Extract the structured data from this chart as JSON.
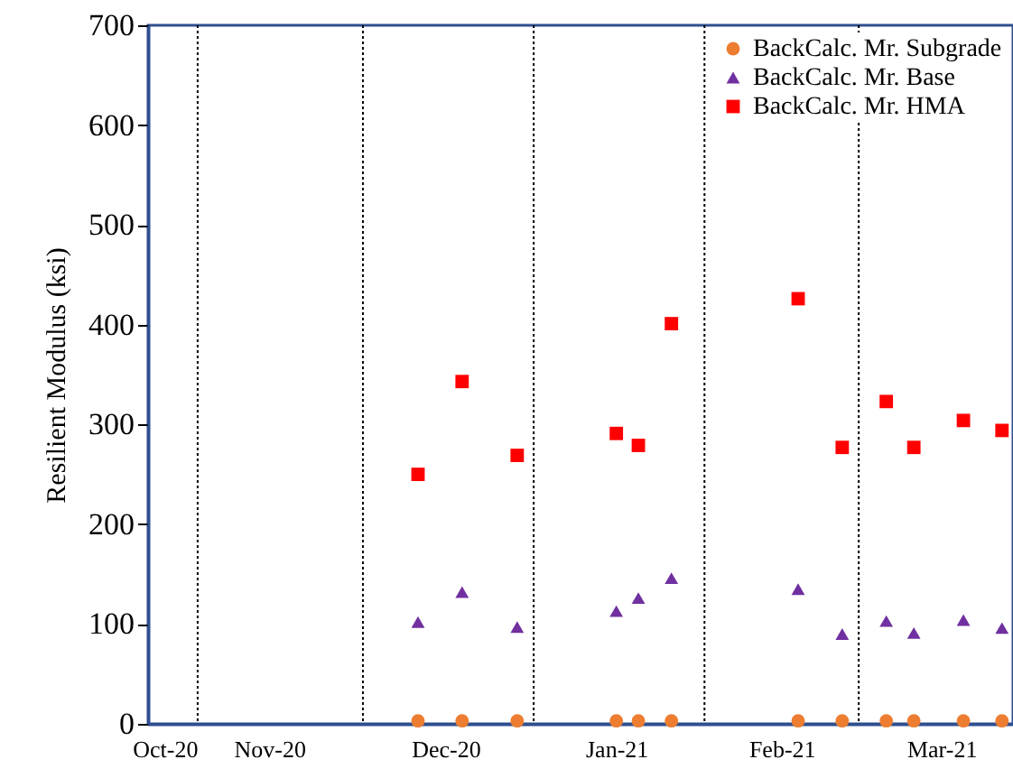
{
  "chart_data": {
    "type": "scatter",
    "ylabel": "Resilient Modulus (ksi)",
    "xlim": [
      "2020-10-23",
      "2021-03-29"
    ],
    "xticks": [
      {
        "value": "2020-10-26",
        "label": "Oct-20"
      },
      {
        "value": "2020-11-14",
        "label": "Nov-20"
      },
      {
        "value": "2020-12-16",
        "label": "Dec-20"
      },
      {
        "value": "2021-01-16",
        "label": "Jan-21"
      },
      {
        "value": "2021-02-15",
        "label": "Feb-21"
      },
      {
        "value": "2021-03-16",
        "label": "Mar-21"
      }
    ],
    "ylim": [
      0,
      700
    ],
    "yticks": [
      0,
      100,
      200,
      300,
      400,
      500,
      600,
      700
    ],
    "x": [
      "2020-12-11",
      "2020-12-19",
      "2020-12-29",
      "2021-01-16",
      "2021-01-20",
      "2021-01-26",
      "2021-02-18",
      "2021-02-26",
      "2021-03-06",
      "2021-03-11",
      "2021-03-20",
      "2021-03-27"
    ],
    "series": [
      {
        "name": "BackCalc. Mr. Subgrade",
        "color": "#ed7d31",
        "marker": "circle",
        "values": [
          3,
          3,
          3,
          3,
          3,
          3,
          3,
          3,
          3,
          3,
          3,
          3
        ]
      },
      {
        "name": "BackCalc. Mr. Base",
        "color": "#7030a0",
        "marker": "triangle",
        "values": [
          102,
          132,
          97,
          113,
          126,
          146,
          135,
          90,
          103,
          91,
          104,
          96
        ]
      },
      {
        "name": "BackCalc. Mr. HMA",
        "color": "#ff0000",
        "marker": "square",
        "values": [
          250,
          343,
          269,
          291,
          279,
          401,
          426,
          277,
          323,
          277,
          304,
          294
        ]
      }
    ],
    "ref_lines": [
      {
        "axis": "x",
        "value": "2020-11-01",
        "label": null,
        "line_style": "dotted"
      },
      {
        "axis": "x",
        "value": "2020-12-01",
        "label": null,
        "line_style": "dotted"
      },
      {
        "axis": "x",
        "value": "2021-01-01",
        "label": null,
        "line_style": "dotted"
      },
      {
        "axis": "x",
        "value": "2021-02-01",
        "label": null,
        "line_style": "dotted"
      },
      {
        "axis": "x",
        "value": "2021-03-01",
        "label": null,
        "line_style": "dotted"
      }
    ],
    "grid": false,
    "legend": "top right"
  }
}
